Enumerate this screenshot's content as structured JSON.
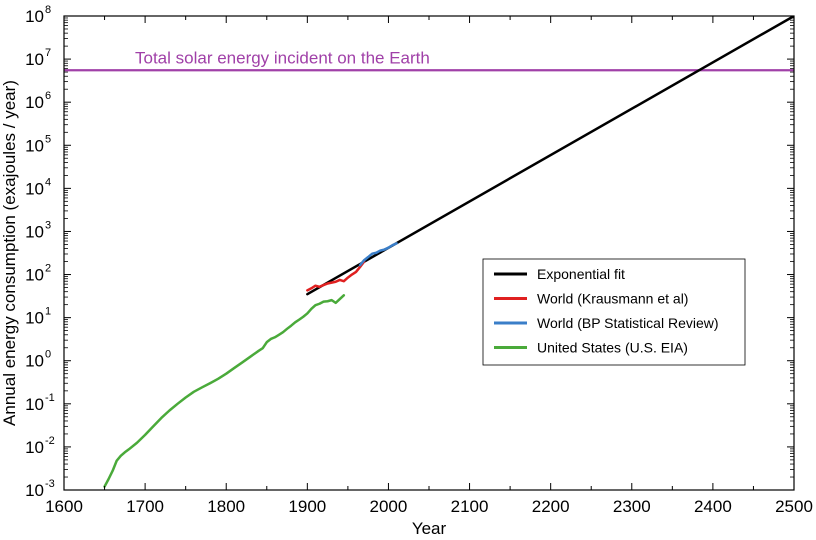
{
  "chart_data": {
    "type": "line",
    "title": "",
    "xlabel": "Year",
    "ylabel": "Annual energy consumption (exajoules / year)",
    "xlim": [
      1600,
      2500
    ],
    "ylim": [
      0.001,
      100000000
    ],
    "yscale": "log",
    "grid": false,
    "legend_position": "center-right",
    "x_ticks": [
      "1600",
      "1700",
      "1800",
      "1900",
      "2000",
      "2100",
      "2200",
      "2300",
      "2400",
      "2500"
    ],
    "y_ticks": [
      {
        "base": "10",
        "exp": "-3",
        "value": 0.001
      },
      {
        "base": "10",
        "exp": "-2",
        "value": 0.01
      },
      {
        "base": "10",
        "exp": "-1",
        "value": 0.1
      },
      {
        "base": "10",
        "exp": "0",
        "value": 1
      },
      {
        "base": "10",
        "exp": "1",
        "value": 10
      },
      {
        "base": "10",
        "exp": "2",
        "value": 100
      },
      {
        "base": "10",
        "exp": "3",
        "value": 1000
      },
      {
        "base": "10",
        "exp": "4",
        "value": 10000
      },
      {
        "base": "10",
        "exp": "5",
        "value": 100000
      },
      {
        "base": "10",
        "exp": "6",
        "value": 1000000
      },
      {
        "base": "10",
        "exp": "7",
        "value": 10000000
      },
      {
        "base": "10",
        "exp": "8",
        "value": 100000000
      }
    ],
    "reference_line": {
      "label": "Total solar energy incident on the Earth",
      "value": 5500000,
      "color": "#a040a8"
    },
    "series": [
      {
        "name": "Exponential fit",
        "color": "#000000",
        "x": [
          1900,
          2500
        ],
        "y": [
          35,
          100000000
        ]
      },
      {
        "name": "World (Krausmann et al)",
        "color": "#e02020",
        "x": [
          1900,
          1905,
          1910,
          1915,
          1920,
          1925,
          1930,
          1935,
          1940,
          1945,
          1950,
          1955,
          1960,
          1965,
          1970
        ],
        "y": [
          43,
          48,
          55,
          52,
          57,
          62,
          65,
          68,
          75,
          70,
          85,
          100,
          115,
          150,
          200
        ]
      },
      {
        "name": "World (BP Statistical Review)",
        "color": "#3a7ec8",
        "x": [
          1965,
          1970,
          1975,
          1980,
          1985,
          1990,
          1995,
          2000,
          2005,
          2010
        ],
        "y": [
          165,
          215,
          255,
          305,
          320,
          360,
          380,
          420,
          480,
          530
        ]
      },
      {
        "name": "United States (U.S. EIA)",
        "color": "#4aaa3a",
        "x": [
          1650,
          1655,
          1660,
          1665,
          1670,
          1675,
          1680,
          1690,
          1700,
          1710,
          1720,
          1730,
          1740,
          1750,
          1760,
          1770,
          1780,
          1790,
          1800,
          1810,
          1820,
          1830,
          1840,
          1845,
          1850,
          1855,
          1860,
          1865,
          1870,
          1875,
          1880,
          1885,
          1890,
          1895,
          1900,
          1905,
          1910,
          1915,
          1920,
          1925,
          1930,
          1935,
          1940,
          1945
        ],
        "y": [
          0.0012,
          0.0018,
          0.0028,
          0.0048,
          0.0062,
          0.0075,
          0.0088,
          0.0125,
          0.019,
          0.03,
          0.047,
          0.07,
          0.1,
          0.14,
          0.19,
          0.24,
          0.3,
          0.38,
          0.5,
          0.68,
          0.92,
          1.25,
          1.7,
          1.95,
          2.7,
          3.2,
          3.5,
          4.0,
          4.6,
          5.5,
          6.5,
          7.8,
          9.0,
          10.5,
          12.5,
          16.0,
          19.5,
          21.0,
          23.5,
          24.0,
          25.5,
          22.0,
          27.0,
          33.0
        ]
      }
    ]
  }
}
